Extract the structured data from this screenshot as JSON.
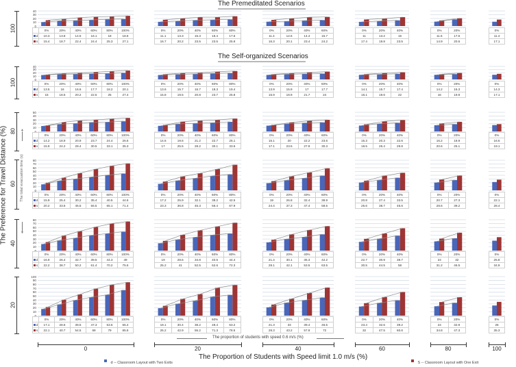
{
  "titles": {
    "premeditated": "The Premeditated Scenarios",
    "self_organized": "The Self-organized Scenarios"
  },
  "axes": {
    "y_outer_label": "The Preference for Travel Distance (%)",
    "y_inner_label": "The total evacuation time (s)",
    "x_outer_label": "The Proportion of Students with Speed limit 1.0 m/s (%)",
    "x_inner_label": "The proportion of students with speed 0.6 m/s (%)",
    "x_groups": [
      "0",
      "20",
      "40",
      "60",
      "80",
      "100"
    ],
    "row_labels": [
      "100",
      "100",
      "80",
      "60",
      "40",
      "20"
    ]
  },
  "legend": {
    "d": {
      "key": "d",
      "label": "d -- Classroom Layout with Two Exits",
      "color": "#4a66b8"
    },
    "s": {
      "key": "s",
      "label": "S -- Classroom Layout with One Exit",
      "color": "#9e3535"
    }
  },
  "colors": {
    "gridline": "#d3dbe4",
    "trendline": "#8a8a8a"
  },
  "chart_data": {
    "type": "bar",
    "grid": true,
    "legend_position": "bottom",
    "categories_all": [
      "0%",
      "20%",
      "40%",
      "60%",
      "80%",
      "100%"
    ],
    "rows": [
      {
        "scenario": "premeditated",
        "preference": "100",
        "ylim": [
          0,
          40
        ],
        "yticks": [
          0,
          10,
          20,
          30,
          40
        ],
        "panels": [
          {
            "group": "0",
            "d": [
              10.3,
              13.8,
              14.5,
              16.1,
              18,
              18.6
            ],
            "s": [
              15.4,
              18.7,
              22.4,
              24.4,
              25.3,
              27.1
            ]
          },
          {
            "group": "20",
            "d": [
              11.1,
              13.3,
              15.3,
              16.4,
              17.6
            ],
            "s": [
              16.7,
              20.2,
              23.5,
              23.5,
              25.9
            ]
          },
          {
            "group": "40",
            "d": [
              11.4,
              12.6,
              14.4,
              15.7
            ],
            "s": [
              16.3,
              20.1,
              23.4,
              24.2
            ]
          },
          {
            "group": "60",
            "d": [
              11,
              13.2,
              15
            ],
            "s": [
              17.4,
              19.8,
              23.5
            ]
          },
          {
            "group": "80",
            "d": [
              11.6,
              17.6
            ],
            "s": [
              14.9,
              20.6
            ]
          },
          {
            "group": "100",
            "d": [
              11.4
            ],
            "s": [
              17.1
            ]
          }
        ]
      },
      {
        "scenario": "self-organized",
        "preference": "100",
        "ylim": [
          0,
          40
        ],
        "yticks": [
          0,
          10,
          20,
          30,
          40
        ],
        "panels": [
          {
            "group": "0",
            "d": [
              13.5,
              16,
              16.6,
              17.7,
              18.2,
              20.1
            ],
            "s": [
              15,
              18.5,
              20.2,
              22.5,
              25,
              27.4
            ]
          },
          {
            "group": "20",
            "d": [
              13.6,
              15.7,
              16.7,
              18.3,
              19.4
            ],
            "s": [
              15.8,
              19.5,
              20.8,
              23.7,
              25.8
            ]
          },
          {
            "group": "40",
            "d": [
              13.9,
              15.9,
              17,
              17.7
            ],
            "s": [
              15.9,
              18.9,
              21.7,
              24
            ]
          },
          {
            "group": "60",
            "d": [
              14.1,
              15.7,
              17.4
            ],
            "s": [
              16.1,
              19.6,
              22
            ]
          },
          {
            "group": "80",
            "d": [
              14.2,
              16.3
            ],
            "s": [
              16,
              19.9
            ]
          },
          {
            "group": "100",
            "d": [
              14.3
            ],
            "s": [
              17.1
            ]
          }
        ]
      },
      {
        "scenario": "self-organized",
        "preference": "80",
        "ylim": [
          0,
          50
        ],
        "yticks": [
          0,
          10,
          20,
          30,
          40,
          50
        ],
        "panels": [
          {
            "group": "0",
            "d": [
              14.2,
              18.9,
              20.9,
              23.7,
              24.4,
              26.6
            ],
            "s": [
              15.9,
              24.2,
              28.4,
              30.5,
              33.1,
              35.3
            ]
          },
          {
            "group": "20",
            "d": [
              14.6,
              19.6,
              21.2,
              22.7,
              25.1
            ],
            "s": [
              17,
              25.5,
              28.2,
              30.1,
              33.6
            ]
          },
          {
            "group": "40",
            "d": [
              15.1,
              20,
              22.2,
              23.6
            ],
            "s": [
              17.1,
              23.5,
              27.9,
              30.3
            ]
          },
          {
            "group": "60",
            "d": [
              15.3,
              20.3,
              22.6
            ],
            "s": [
              18.5,
              26.4,
              29.8
            ]
          },
          {
            "group": "80",
            "d": [
              16.2,
              18.9
            ],
            "s": [
              20.6,
              25.1
            ]
          },
          {
            "group": "100",
            "d": [
              16.6
            ],
            "s": [
              19.1
            ]
          }
        ]
      },
      {
        "scenario": "self-organized",
        "preference": "60",
        "ylim": [
          0,
          80
        ],
        "yticks": [
          0,
          10,
          20,
          30,
          40,
          50,
          60,
          70,
          80
        ],
        "panels": [
          {
            "group": "0",
            "d": [
              15.9,
              25.4,
              30.2,
              35.4,
              40.5,
              44.6
            ],
            "s": [
              20.2,
              33.6,
              45.5,
              56.5,
              65.1,
              71.4
            ]
          },
          {
            "group": "20",
            "d": [
              17.2,
              25.9,
              32.1,
              38.2,
              42.5
            ],
            "s": [
              23.3,
              36.8,
              45.3,
              56.4,
              67.9
            ]
          },
          {
            "group": "40",
            "d": [
              19,
              26.8,
              32.4,
              38.9
            ],
            "s": [
              24.4,
              37.3,
              47.4,
              58.5
            ]
          },
          {
            "group": "60",
            "d": [
              20.8,
              27.4,
              33.5
            ],
            "s": [
              25.6,
              38.7,
              46.6
            ]
          },
          {
            "group": "80",
            "d": [
              20.7,
              27.3
            ],
            "s": [
              28.6,
              39.2
            ]
          },
          {
            "group": "100",
            "d": [
              22.1
            ],
            "s": [
              28.4
            ]
          }
        ]
      },
      {
        "scenario": "self-organized",
        "preference": "40",
        "ylim": [
          0,
          80
        ],
        "yticks": [
          0,
          10,
          20,
          30,
          40,
          50,
          60,
          70,
          80
        ],
        "panels": [
          {
            "group": "0",
            "d": [
              16.9,
              26.4,
              32.7,
              39.5,
              44.3,
              49
            ],
            "s": [
              22.2,
              38.7,
              50.2,
              61.4,
              70.2,
              75.6
            ]
          },
          {
            "group": "20",
            "d": [
              19,
              28.6,
              34.8,
              40.5,
              44.4
            ],
            "s": [
              25.2,
              41,
              52.5,
              62.6,
              72.3
            ]
          },
          {
            "group": "40",
            "d": [
              21.4,
              30.1,
              35.3,
              42.2
            ],
            "s": [
              28.1,
              42.1,
              53.5,
              63.5
            ]
          },
          {
            "group": "60",
            "d": [
              22.7,
              30.9,
              38.7
            ],
            "s": [
              30.5,
              44.5,
              58
            ]
          },
          {
            "group": "80",
            "d": [
              24,
              32
            ],
            "s": [
              31.2,
              46.5
            ]
          },
          {
            "group": "100",
            "d": [
              25.8
            ],
            "s": [
              34.9
            ]
          }
        ]
      },
      {
        "scenario": "self-organized",
        "preference": "20",
        "ylim": [
          0,
          100
        ],
        "yticks": [
          0,
          10,
          20,
          30,
          40,
          50,
          60,
          70,
          80,
          90,
          100
        ],
        "panels": [
          {
            "group": "0",
            "d": [
              17.1,
              28.6,
              39.5,
              47.3,
              53.6,
              65.4
            ],
            "s": [
              22.1,
              40.7,
              54.5,
              69,
              79,
              85.6
            ]
          },
          {
            "group": "20",
            "d": [
              19.1,
              30.4,
              38.2,
              48.4,
              53.2
            ],
            "s": [
              25.2,
              42.9,
              55.2,
              71.3,
              78.5
            ]
          },
          {
            "group": "40",
            "d": [
              21.3,
              33,
              39.4,
              46.5
            ],
            "s": [
              28.3,
              43.2,
              57.9,
              72
            ]
          },
          {
            "group": "60",
            "d": [
              23.4,
              32.6,
              39.2
            ],
            "s": [
              32,
              47.5,
              60.6
            ]
          },
          {
            "group": "80",
            "d": [
              24,
              32.9
            ],
            "s": [
              34.8,
              47.3
            ]
          },
          {
            "group": "100",
            "d": [
              26
            ],
            "s": [
              35.3
            ]
          }
        ]
      }
    ]
  }
}
